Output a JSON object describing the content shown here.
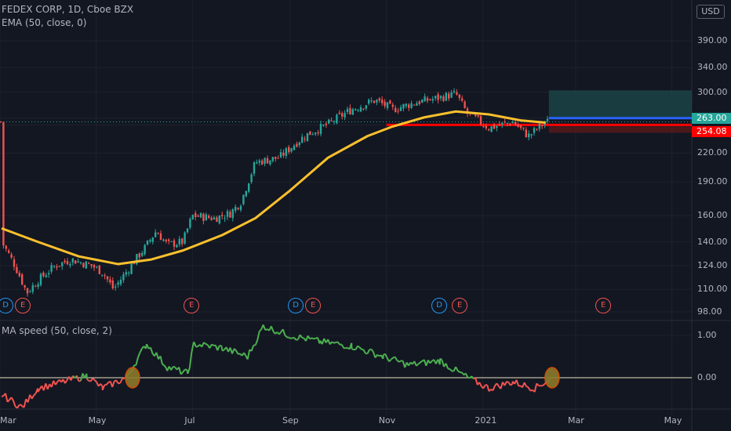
{
  "header": {
    "symbol_line": "FEDEX CORP, 1D, Cboe BZX",
    "indicator_line": "EMA (50, close, 0)",
    "oscillator_line": "MA speed (50, close, 2)",
    "currency": "USD"
  },
  "colors": {
    "background": "#131722",
    "grid": "#1e222d",
    "up": "#26a69a",
    "down": "#ef5350",
    "ema": "#fbc02d",
    "speed_up": "#4caf50",
    "speed_down": "#f05350",
    "resistance": "#ff0000",
    "target": "#2962ff",
    "zone": "#1b4a4a"
  },
  "chart_data": [
    {
      "type": "candlestick",
      "title": "FEDEX CORP, 1D, Cboe BZX",
      "y_scale": "log",
      "ylim": [
        95,
        430
      ],
      "y_ticks": [
        "390.00",
        "340.00",
        "300.00",
        "263.00",
        "254.08",
        "220.00",
        "190.00",
        "160.00",
        "140.00",
        "124.00",
        "110.00",
        "98.00"
      ],
      "x_ticks": [
        "Mar",
        "May",
        "Jul",
        "Sep",
        "Nov",
        "2021",
        "Mar",
        "May"
      ],
      "price_path": [
        [
          "2020-03-02",
          140
        ],
        [
          "2020-03-10",
          125
        ],
        [
          "2020-03-18",
          108
        ],
        [
          "2020-03-25",
          115
        ],
        [
          "2020-04-05",
          124
        ],
        [
          "2020-04-15",
          128
        ],
        [
          "2020-04-28",
          124
        ],
        [
          "2020-05-05",
          120
        ],
        [
          "2020-05-12",
          110
        ],
        [
          "2020-05-20",
          120
        ],
        [
          "2020-06-01",
          136
        ],
        [
          "2020-06-08",
          148
        ],
        [
          "2020-06-15",
          138
        ],
        [
          "2020-06-25",
          140
        ],
        [
          "2020-07-01",
          160
        ],
        [
          "2020-07-15",
          158
        ],
        [
          "2020-07-25",
          162
        ],
        [
          "2020-08-01",
          172
        ],
        [
          "2020-08-10",
          210
        ],
        [
          "2020-08-25",
          215
        ],
        [
          "2020-09-10",
          240
        ],
        [
          "2020-09-25",
          255
        ],
        [
          "2020-10-10",
          275
        ],
        [
          "2020-10-25",
          288
        ],
        [
          "2020-11-05",
          275
        ],
        [
          "2020-11-20",
          285
        ],
        [
          "2020-12-05",
          292
        ],
        [
          "2020-12-15",
          298
        ],
        [
          "2020-12-22",
          270
        ],
        [
          "2021-01-05",
          250
        ],
        [
          "2021-01-20",
          258
        ],
        [
          "2021-01-30",
          240
        ],
        [
          "2021-02-10",
          258
        ]
      ],
      "series": [
        {
          "name": "EMA (50, close, 0)",
          "values": [
            [
              "2020-03-02",
              150
            ],
            [
              "2020-03-25",
              140
            ],
            [
              "2020-04-20",
              130
            ],
            [
              "2020-05-15",
              125
            ],
            [
              "2020-06-05",
              128
            ],
            [
              "2020-06-25",
              134
            ],
            [
              "2020-07-20",
              145
            ],
            [
              "2020-08-10",
              158
            ],
            [
              "2020-09-01",
              182
            ],
            [
              "2020-09-25",
              215
            ],
            [
              "2020-10-20",
              240
            ],
            [
              "2020-11-05",
              252
            ],
            [
              "2020-11-25",
              264
            ],
            [
              "2020-12-15",
              272
            ],
            [
              "2021-01-05",
              268
            ],
            [
              "2021-01-25",
              260
            ],
            [
              "2021-02-10",
              257
            ]
          ]
        }
      ],
      "levels": [
        {
          "label": "263.00",
          "value": 263.0
        },
        {
          "label": "254.08",
          "value": 254.08
        }
      ],
      "target_zone": [
        263.0,
        303.0
      ],
      "last_close": 258
    },
    {
      "type": "line",
      "title": "MA speed (50, close, 2)",
      "y_ticks": [
        "1.00",
        "0.00"
      ],
      "ylim": [
        -0.8,
        1.25
      ],
      "zero_line": 0.0,
      "series": [
        {
          "values": [
            [
              "2020-03-02",
              -0.4
            ],
            [
              "2020-03-15",
              -0.7
            ],
            [
              "2020-03-25",
              -0.25
            ],
            [
              "2020-04-10",
              -0.1
            ],
            [
              "2020-04-25",
              0.05
            ],
            [
              "2020-05-05",
              -0.25
            ],
            [
              "2020-05-20",
              0.0
            ],
            [
              "2020-06-02",
              0.8
            ],
            [
              "2020-06-15",
              0.25
            ],
            [
              "2020-06-28",
              0.1
            ],
            [
              "2020-07-02",
              0.8
            ],
            [
              "2020-07-20",
              0.7
            ],
            [
              "2020-08-05",
              0.5
            ],
            [
              "2020-08-15",
              1.22
            ],
            [
              "2020-09-01",
              1.0
            ],
            [
              "2020-09-20",
              0.85
            ],
            [
              "2020-10-10",
              0.75
            ],
            [
              "2020-10-30",
              0.5
            ],
            [
              "2020-11-15",
              0.3
            ],
            [
              "2020-12-05",
              0.4
            ],
            [
              "2020-12-20",
              0.05
            ],
            [
              "2021-01-05",
              -0.25
            ],
            [
              "2021-01-20",
              -0.1
            ],
            [
              "2021-02-03",
              -0.25
            ],
            [
              "2021-02-14",
              0.0
            ]
          ]
        }
      ],
      "markers": [
        [
          "2020-05-24",
          0.0
        ],
        [
          "2021-02-14",
          0.0
        ]
      ]
    }
  ],
  "events": [
    {
      "letter": "D",
      "date": "2020-03-04",
      "kind": "dividend"
    },
    {
      "letter": "E",
      "date": "2020-03-15",
      "kind": "earnings"
    },
    {
      "letter": "E",
      "date": "2020-06-30",
      "kind": "earnings"
    },
    {
      "letter": "D",
      "date": "2020-09-04",
      "kind": "dividend"
    },
    {
      "letter": "E",
      "date": "2020-09-15",
      "kind": "earnings"
    },
    {
      "letter": "D",
      "date": "2020-12-04",
      "kind": "dividend"
    },
    {
      "letter": "E",
      "date": "2020-12-17",
      "kind": "earnings"
    },
    {
      "letter": "E",
      "date": "2021-03-18",
      "kind": "earnings"
    }
  ]
}
